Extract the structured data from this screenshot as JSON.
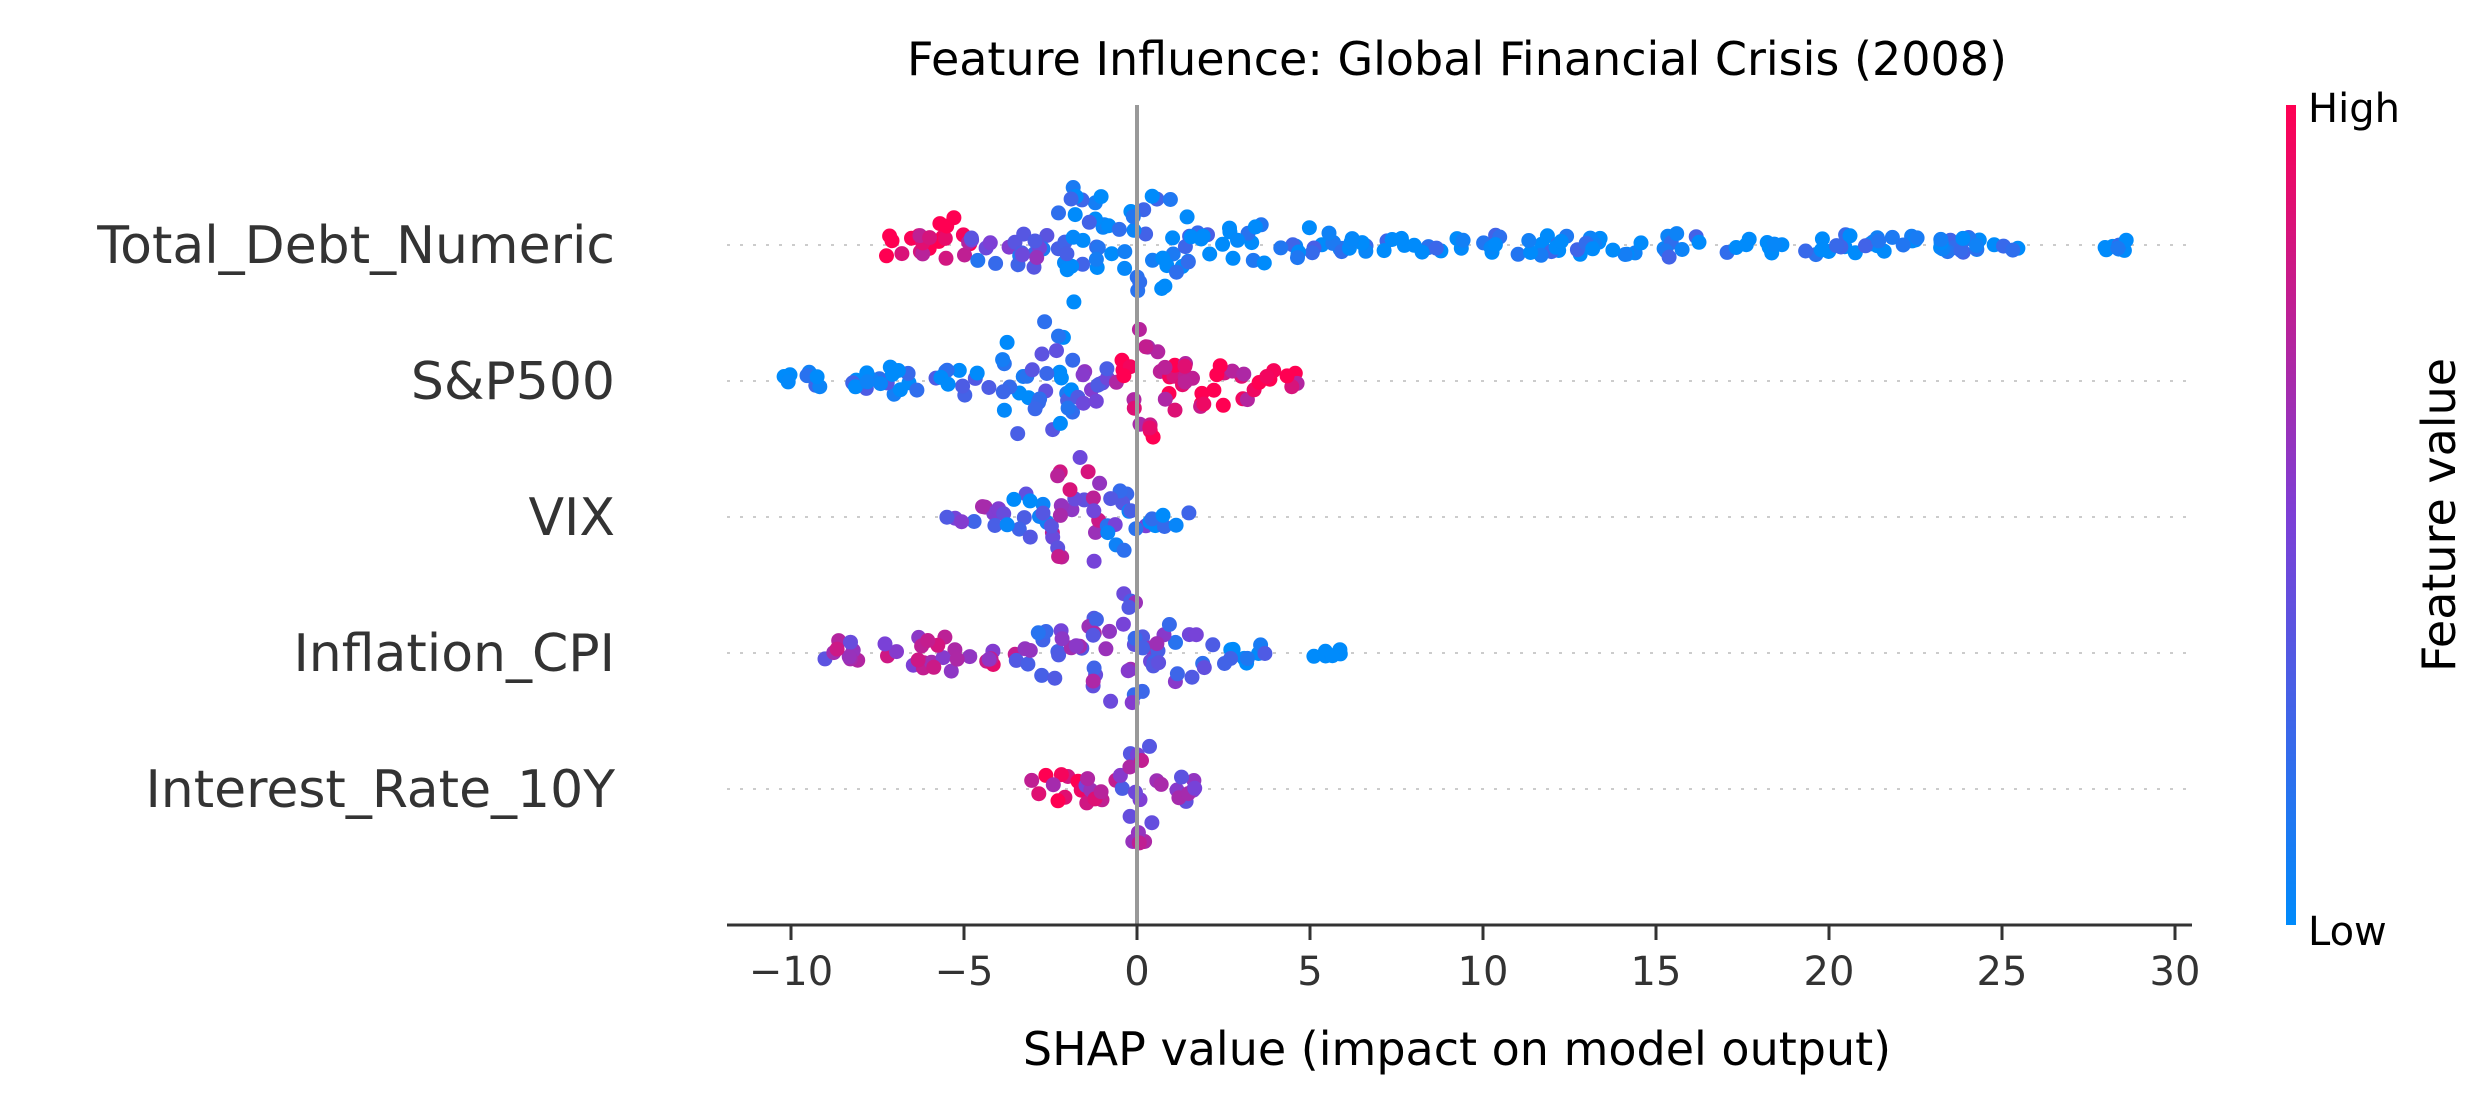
{
  "chart_data": {
    "type": "scatter",
    "subtype": "shap-beeswarm",
    "title": "Feature Influence: Global Financial Crisis (2008)",
    "xlabel": "SHAP value (impact on model output)",
    "xlim": [
      -12,
      31
    ],
    "xticks": [
      {
        "value": -10,
        "label": "−10"
      },
      {
        "value": -5,
        "label": "−5"
      },
      {
        "value": 0,
        "label": "0"
      },
      {
        "value": 5,
        "label": "5"
      },
      {
        "value": 10,
        "label": "10"
      },
      {
        "value": 15,
        "label": "15"
      },
      {
        "value": 20,
        "label": "20"
      },
      {
        "value": 25,
        "label": "25"
      },
      {
        "value": 30,
        "label": "30"
      }
    ],
    "colorbar": {
      "label": "Feature value",
      "high_label": "High",
      "low_label": "Low",
      "high_color": "#ff0052",
      "low_color": "#008bfb"
    },
    "series": [
      {
        "name": "Total_Debt_Numeric",
        "clusters": [
          {
            "shap_min": -7.5,
            "shap_max": -6.0,
            "feature_value": 0.92,
            "density": 0.3
          },
          {
            "shap_min": -6.0,
            "shap_max": -4.8,
            "feature_value": 0.95,
            "density": 0.55
          },
          {
            "shap_min": -4.8,
            "shap_max": -2.5,
            "feature_value": 0.35,
            "density": 0.45
          },
          {
            "shap_min": -2.5,
            "shap_max": -0.6,
            "feature_value": 0.05,
            "density": 1.0
          },
          {
            "shap_min": -0.6,
            "shap_max": 1.5,
            "feature_value": 0.05,
            "density": 0.9
          },
          {
            "shap_min": 1.5,
            "shap_max": 6.0,
            "feature_value": 0.05,
            "density": 0.35
          },
          {
            "shap_min": 6.0,
            "shap_max": 25.5,
            "feature_value": 0.03,
            "density": 0.2
          },
          {
            "shap_min": 27.5,
            "shap_max": 29.0,
            "feature_value": 0.03,
            "density": 0.12
          }
        ]
      },
      {
        "name": "S&P500",
        "clusters": [
          {
            "shap_min": -10.2,
            "shap_max": -8.8,
            "feature_value": 0.05,
            "density": 0.15
          },
          {
            "shap_min": -8.3,
            "shap_max": -4.0,
            "feature_value": 0.1,
            "density": 0.3
          },
          {
            "shap_min": -4.0,
            "shap_max": -1.8,
            "feature_value": 0.15,
            "density": 1.0
          },
          {
            "shap_min": -1.8,
            "shap_max": -0.6,
            "feature_value": 0.4,
            "density": 0.5
          },
          {
            "shap_min": -0.6,
            "shap_max": 1.2,
            "feature_value": 0.9,
            "density": 1.0
          },
          {
            "shap_min": 1.2,
            "shap_max": 3.5,
            "feature_value": 0.92,
            "density": 0.5
          },
          {
            "shap_min": 3.5,
            "shap_max": 4.9,
            "feature_value": 0.95,
            "density": 0.2
          }
        ]
      },
      {
        "name": "VIX",
        "clusters": [
          {
            "shap_min": -5.5,
            "shap_max": -3.8,
            "feature_value": 0.45,
            "density": 0.2
          },
          {
            "shap_min": -3.8,
            "shap_max": -2.5,
            "feature_value": 0.2,
            "density": 0.4
          },
          {
            "shap_min": -2.5,
            "shap_max": -1.0,
            "feature_value": 0.6,
            "density": 1.0
          },
          {
            "shap_min": -1.0,
            "shap_max": 0.3,
            "feature_value": 0.25,
            "density": 0.55
          },
          {
            "shap_min": 0.3,
            "shap_max": 1.5,
            "feature_value": 0.1,
            "density": 0.2
          }
        ]
      },
      {
        "name": "Inflation_CPI",
        "clusters": [
          {
            "shap_min": -9.4,
            "shap_max": -7.8,
            "feature_value": 0.6,
            "density": 0.2
          },
          {
            "shap_min": -7.3,
            "shap_max": -3.5,
            "feature_value": 0.65,
            "density": 0.3
          },
          {
            "shap_min": -3.5,
            "shap_max": -1.5,
            "feature_value": 0.4,
            "density": 0.45
          },
          {
            "shap_min": -1.5,
            "shap_max": 0.4,
            "feature_value": 0.45,
            "density": 1.0
          },
          {
            "shap_min": 0.4,
            "shap_max": 2.0,
            "feature_value": 0.4,
            "density": 0.5
          },
          {
            "shap_min": 2.0,
            "shap_max": 3.8,
            "feature_value": 0.1,
            "density": 0.2
          },
          {
            "shap_min": 5.0,
            "shap_max": 5.9,
            "feature_value": 0.05,
            "density": 0.12
          }
        ]
      },
      {
        "name": "Interest_Rate_10Y",
        "clusters": [
          {
            "shap_min": -3.3,
            "shap_max": -1.5,
            "feature_value": 0.85,
            "density": 0.25
          },
          {
            "shap_min": -1.5,
            "shap_max": -0.5,
            "feature_value": 0.7,
            "density": 0.4
          },
          {
            "shap_min": -0.5,
            "shap_max": 0.5,
            "feature_value": 0.55,
            "density": 1.0
          },
          {
            "shap_min": 0.5,
            "shap_max": 1.9,
            "feature_value": 0.5,
            "density": 0.3
          }
        ]
      }
    ]
  }
}
